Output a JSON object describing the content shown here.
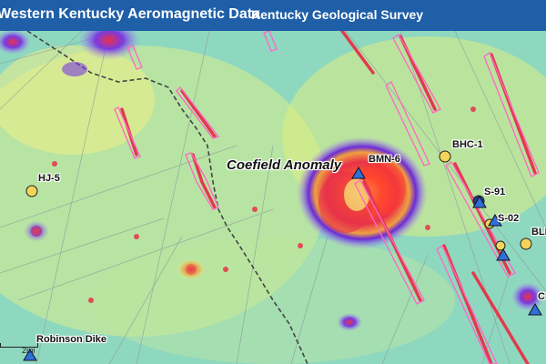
{
  "header": {
    "app_title": "Western Kentucky Aeromagnetic Data",
    "org_title": "Kentucky Geological Survey"
  },
  "map": {
    "anomaly_label": "Coefield  Anomaly",
    "wells": {
      "hj5": "HJ-5",
      "bmn6": "BMN-6",
      "bhc1": "BHC-1",
      "s91": "S-91",
      "s02": "S-02",
      "bl": "BLE",
      "c": "C"
    },
    "place": "Robinson Dike",
    "scale_text": "2mi"
  },
  "colors": {
    "header": "#1f5fa8",
    "low": "#8fd8c0",
    "mid": "#f6f27a",
    "high": "#e8324a",
    "halo": "#6a2ad8",
    "well_circle": "#f2d45a",
    "triangle": "#2f6fd8"
  }
}
